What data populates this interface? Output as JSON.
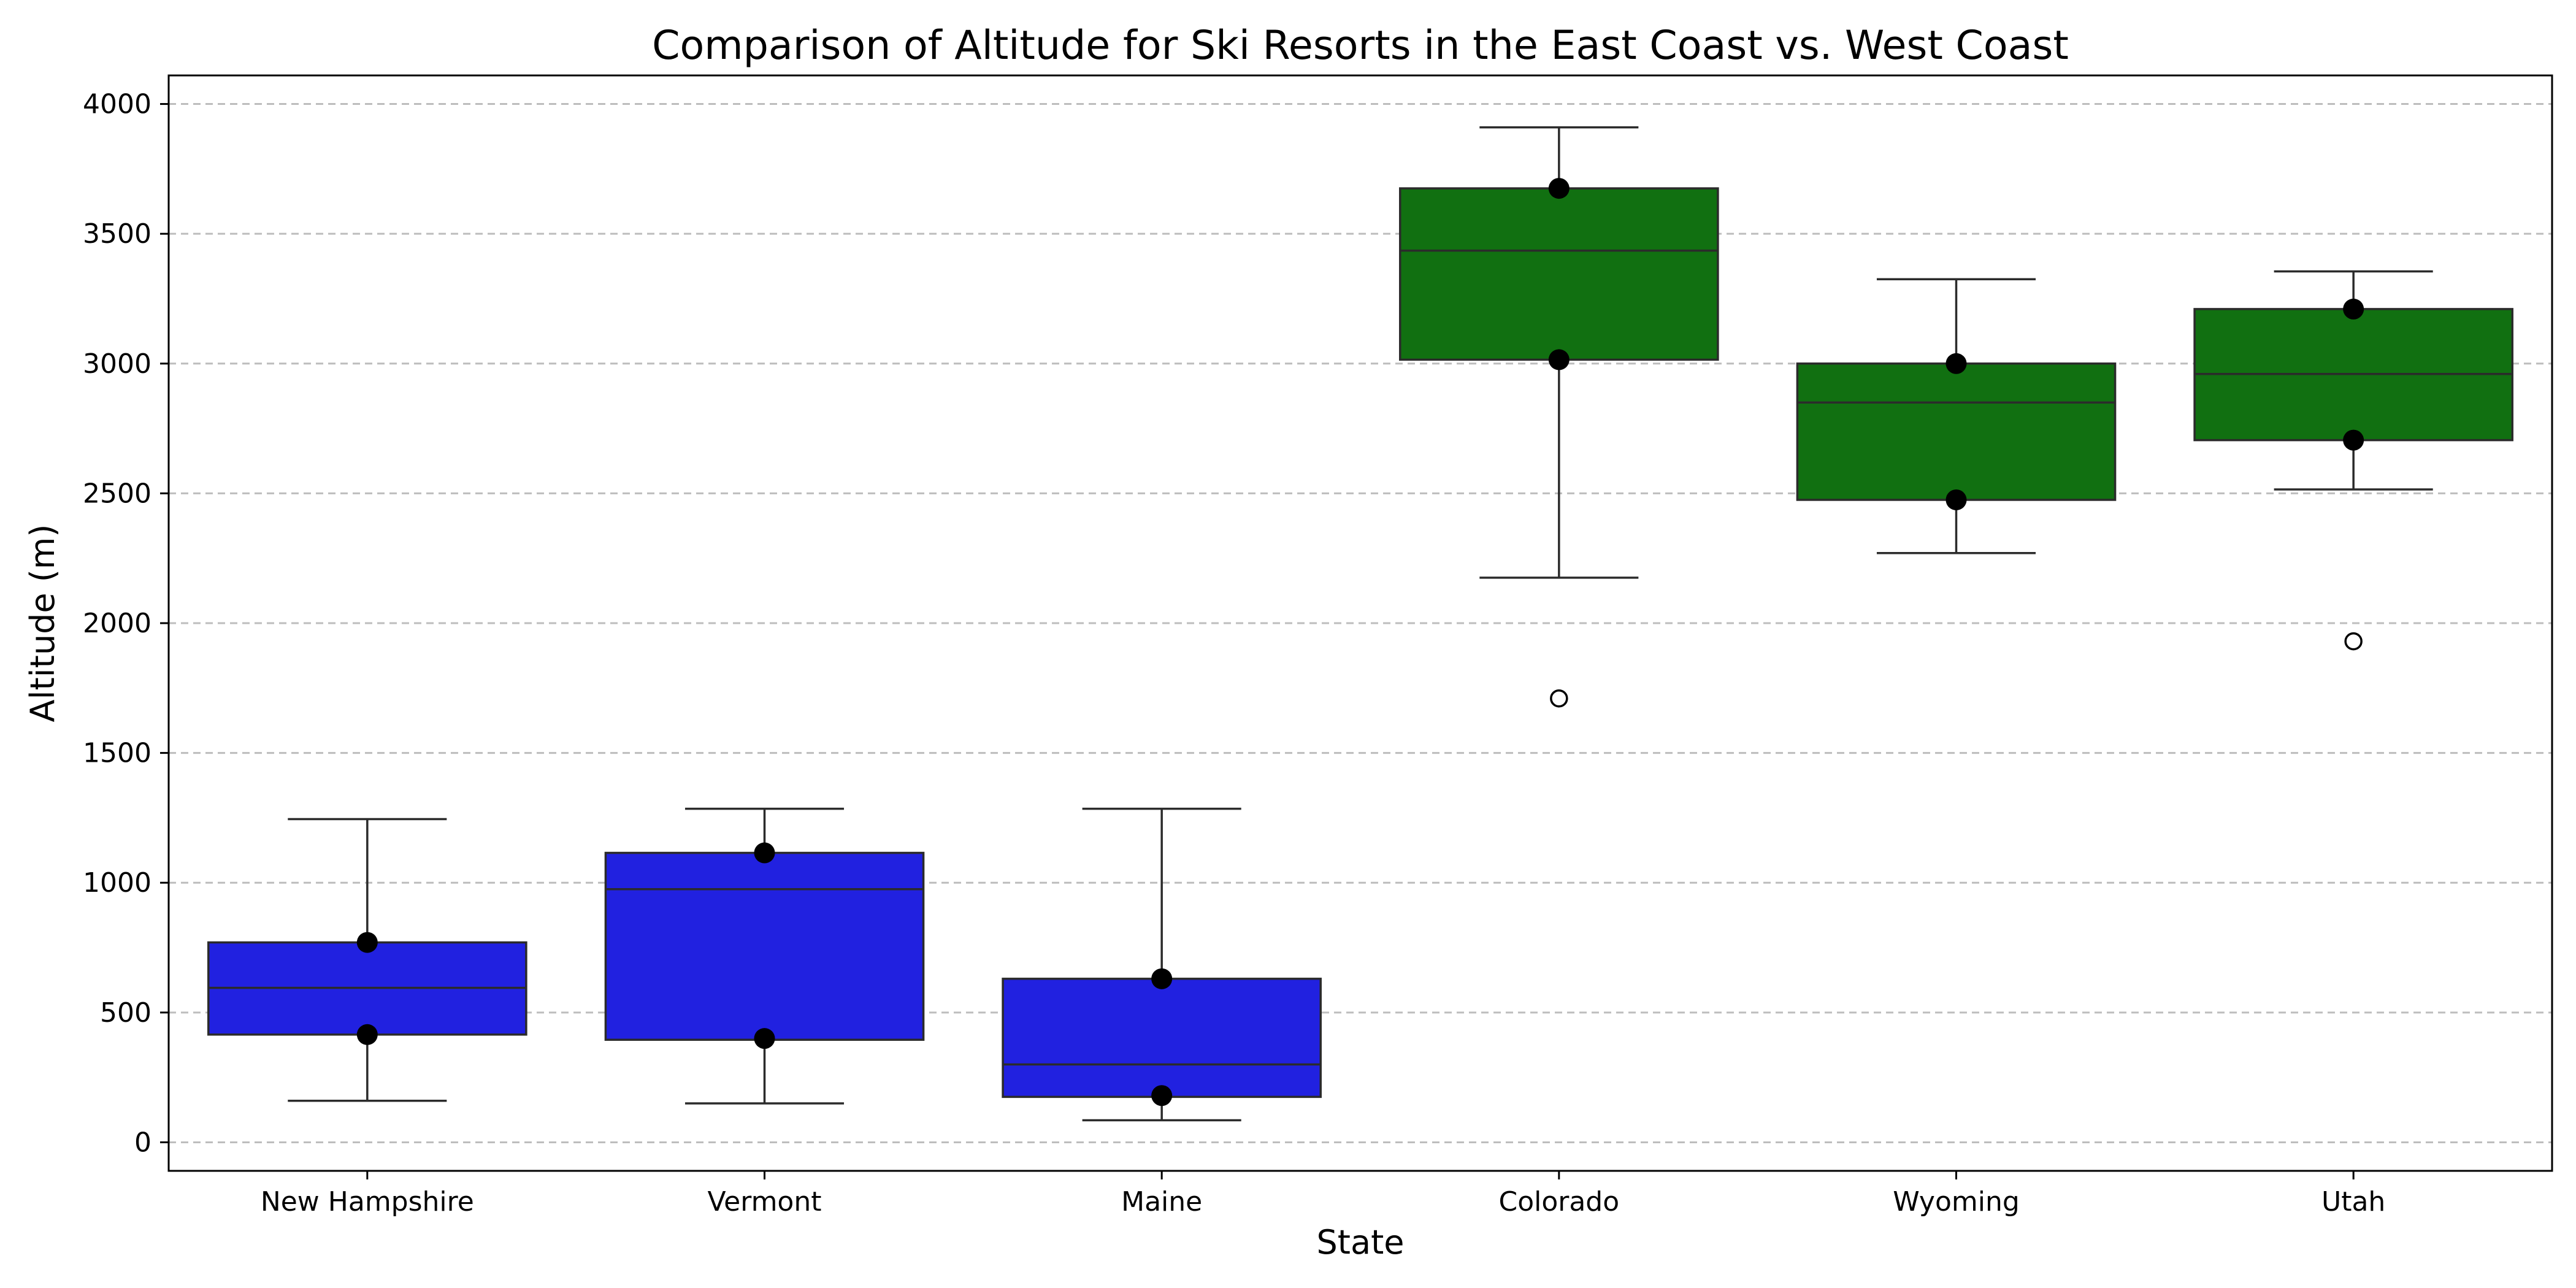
{
  "chart_data": {
    "type": "box",
    "title": "Comparison of Altitude for Ski Resorts in the East Coast vs. West Coast",
    "xlabel": "State",
    "ylabel": "Altitude (m)",
    "ylim": [
      -110,
      4110
    ],
    "yticks": [
      0,
      500,
      1000,
      1500,
      2000,
      2500,
      3000,
      3500,
      4000
    ],
    "grid": "y-dashed",
    "colors": {
      "east": "#2121e0",
      "west": "#117011"
    },
    "categories": [
      "New Hampshire",
      "Vermont",
      "Maine",
      "Colorado",
      "Wyoming",
      "Utah"
    ],
    "boxes": [
      {
        "category": "New Hampshire",
        "group": "east",
        "whisker_low": 160,
        "q1": 415,
        "median": 595,
        "q3": 770,
        "whisker_high": 1245,
        "outliers": [],
        "points": [
          770,
          415
        ]
      },
      {
        "category": "Vermont",
        "group": "east",
        "whisker_low": 150,
        "q1": 395,
        "median": 975,
        "q3": 1115,
        "whisker_high": 1285,
        "outliers": [],
        "points": [
          1115,
          400
        ]
      },
      {
        "category": "Maine",
        "group": "east",
        "whisker_low": 85,
        "q1": 175,
        "median": 300,
        "q3": 630,
        "whisker_high": 1285,
        "outliers": [],
        "points": [
          630,
          180
        ]
      },
      {
        "category": "Colorado",
        "group": "west",
        "whisker_low": 2175,
        "q1": 3015,
        "median": 3435,
        "q3": 3675,
        "whisker_high": 3910,
        "outliers": [
          1710
        ],
        "points": [
          3675,
          3015
        ]
      },
      {
        "category": "Wyoming",
        "group": "west",
        "whisker_low": 2270,
        "q1": 2475,
        "median": 2850,
        "q3": 3000,
        "whisker_high": 3325,
        "outliers": [],
        "points": [
          3000,
          2475
        ]
      },
      {
        "category": "Utah",
        "group": "west",
        "whisker_low": 2515,
        "q1": 2705,
        "median": 2960,
        "q3": 3210,
        "whisker_high": 3355,
        "outliers": [
          1930
        ],
        "points": [
          3210,
          2705
        ]
      }
    ]
  }
}
